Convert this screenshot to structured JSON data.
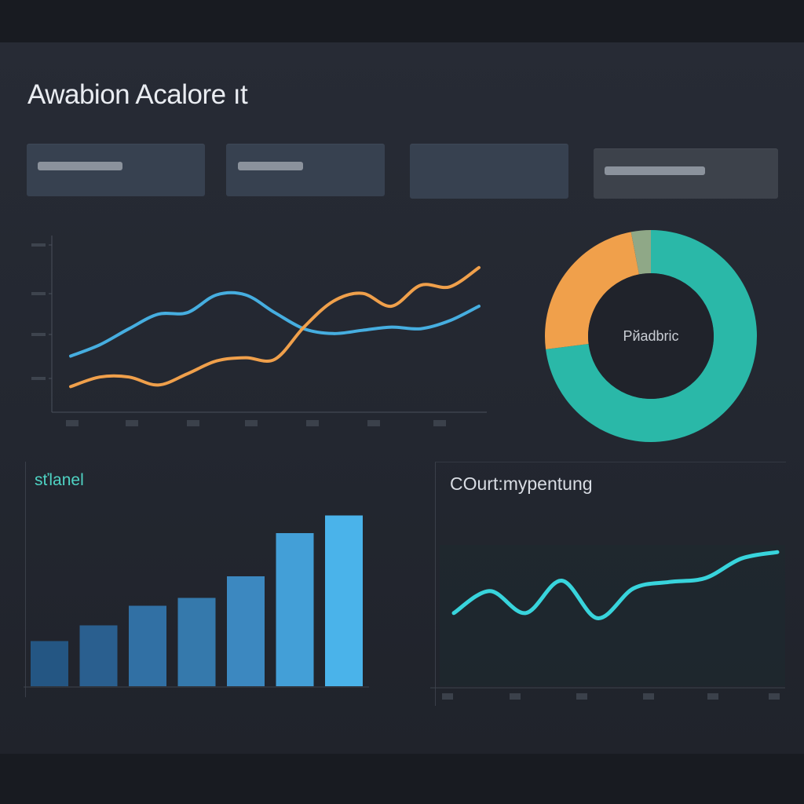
{
  "app": {
    "title": "Awabion Acalore ıt"
  },
  "kpi_cards": [
    {
      "id": "kpi-1",
      "has_value_bar": true
    },
    {
      "id": "kpi-2",
      "has_value_bar": true
    },
    {
      "id": "kpi-3",
      "has_value_bar": false
    },
    {
      "id": "kpi-4",
      "has_value_bar": true
    }
  ],
  "colors": {
    "background": "#232730",
    "orange": "#f0a04b",
    "blue": "#46aee0",
    "teal": "#2ab8a8",
    "cyan": "#38d4dc",
    "bar_dark": "#245683",
    "bar_light": "#4ab3ea"
  },
  "panels": {
    "bar": {
      "title": "sťlanel"
    },
    "wave": {
      "title": "COurt:mypentung"
    }
  },
  "chart_data": [
    {
      "type": "line",
      "series": [
        {
          "color": "#46aee0",
          "values": [
            0.3,
            0.37,
            0.47,
            0.56,
            0.57,
            0.68,
            0.68,
            0.57,
            0.47,
            0.44,
            0.46,
            0.48,
            0.47,
            0.52,
            0.61
          ]
        },
        {
          "color": "#f0a04b",
          "values": [
            0.11,
            0.17,
            0.17,
            0.12,
            0.19,
            0.27,
            0.29,
            0.28,
            0.48,
            0.64,
            0.69,
            0.61,
            0.74,
            0.73,
            0.85
          ]
        }
      ],
      "ylim": [
        0,
        1
      ],
      "grid": false
    },
    {
      "type": "pie",
      "center_label": "Pйadbric",
      "slices": [
        {
          "color": "#2ab8a8",
          "share": 0.73
        },
        {
          "color": "#f0a04b",
          "share": 0.24
        },
        {
          "color": "#8fa887",
          "share": 0.03
        }
      ]
    },
    {
      "type": "bar",
      "values": [
        0.23,
        0.31,
        0.41,
        0.45,
        0.56,
        0.78,
        0.87
      ],
      "ylim": [
        0,
        1
      ],
      "colors": [
        "#245683",
        "#2a5f8f",
        "#3170a4",
        "#3579ac",
        "#3c88c0",
        "#439fd7",
        "#4ab3ea"
      ]
    },
    {
      "type": "line",
      "series": [
        {
          "color": "#38d4dc",
          "values": [
            0.45,
            0.62,
            0.45,
            0.7,
            0.41,
            0.64,
            0.69,
            0.72,
            0.87,
            0.92
          ]
        }
      ],
      "ylim": [
        0,
        1
      ],
      "grid": false
    }
  ]
}
